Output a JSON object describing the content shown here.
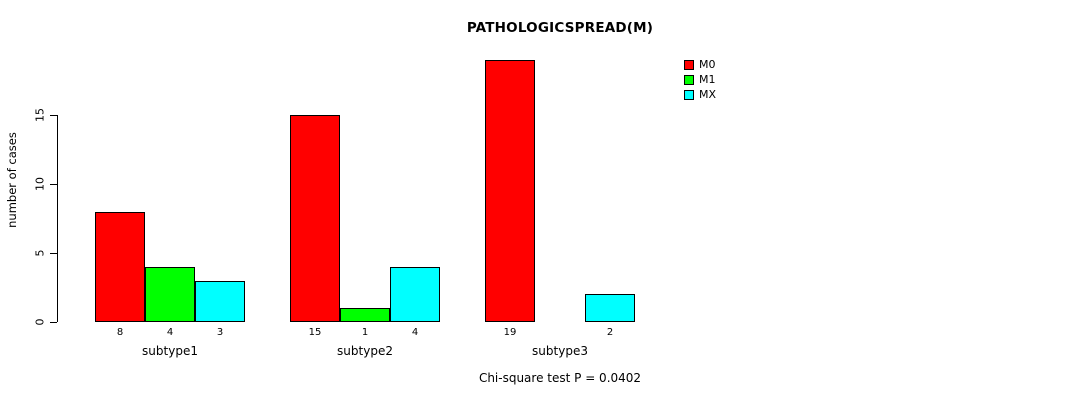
{
  "chart_data": {
    "type": "bar",
    "title": "PATHOLOGICSPREAD(M)",
    "xlabel": "",
    "ylabel": "number of cases",
    "categories": [
      "subtype1",
      "subtype2",
      "subtype3"
    ],
    "series": [
      {
        "name": "M0",
        "color": "#FF0000",
        "values": [
          8,
          15,
          19
        ]
      },
      {
        "name": "M1",
        "color": "#00FF00",
        "values": [
          4,
          1,
          0
        ]
      },
      {
        "name": "MX",
        "color": "#00FFFF",
        "values": [
          3,
          4,
          2
        ]
      }
    ],
    "bar_labels": [
      [
        "8",
        "4",
        "3"
      ],
      [
        "15",
        "1",
        "4"
      ],
      [
        "19",
        "",
        "2"
      ]
    ],
    "yticks": [
      0,
      5,
      10,
      15
    ],
    "ylim": [
      0,
      19
    ],
    "grid": false,
    "legend_position": "top-right",
    "annotation": "Chi-square test P = 0.0402"
  }
}
